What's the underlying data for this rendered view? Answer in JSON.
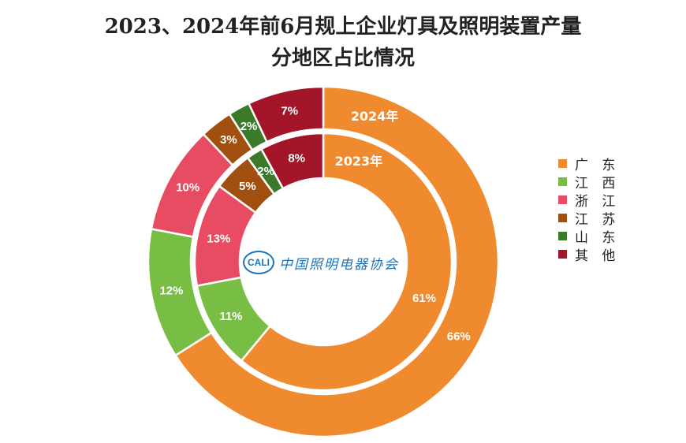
{
  "title": {
    "line1": "2023、2024年前6月规上企业灯具及照明装置产量",
    "line2": "分地区占比情况"
  },
  "watermark": {
    "logo_text": "CALI",
    "org_name": "中国照明电器协会"
  },
  "chart_data": {
    "type": "donut",
    "title": "2023、2024年前6月规上企业灯具及照明装置产量分地区占比情况",
    "categories": [
      "广 东",
      "江 西",
      "浙 江",
      "江 苏",
      "山 东",
      "其 他"
    ],
    "colors": [
      "#F08A2E",
      "#78BE45",
      "#E74C63",
      "#A04F0E",
      "#3A7A2A",
      "#A3162A"
    ],
    "series": [
      {
        "name": "2024年",
        "ring": "outer",
        "values": [
          66,
          12,
          10,
          3,
          2,
          7
        ]
      },
      {
        "name": "2023年",
        "ring": "inner",
        "values": [
          61,
          11,
          13,
          5,
          2,
          8
        ]
      }
    ],
    "data_labels": {
      "2024年": [
        "66%",
        "12%",
        "10%",
        "3%",
        "2%",
        "7%"
      ],
      "2023年": [
        "61%",
        "11%",
        "13%",
        "5%",
        "2%",
        "8%"
      ]
    },
    "legend_position": "right"
  }
}
